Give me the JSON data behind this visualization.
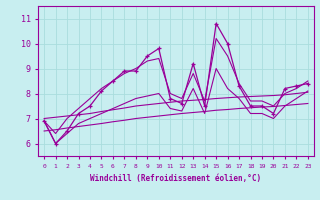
{
  "xlabel": "Windchill (Refroidissement éolien,°C)",
  "background_color": "#c8eef0",
  "grid_color": "#aadddd",
  "line_color": "#990099",
  "x_data": [
    0,
    1,
    2,
    3,
    4,
    5,
    6,
    7,
    8,
    9,
    10,
    11,
    12,
    13,
    14,
    15,
    16,
    17,
    18,
    19,
    20,
    21,
    22,
    23
  ],
  "y_main": [
    6.9,
    6.0,
    6.5,
    7.2,
    7.5,
    8.1,
    8.5,
    8.9,
    8.9,
    9.5,
    9.8,
    7.8,
    7.6,
    9.2,
    7.5,
    10.8,
    10.0,
    8.3,
    7.5,
    7.5,
    7.2,
    8.2,
    8.3,
    8.4
  ],
  "y_upper": [
    6.9,
    6.4,
    7.0,
    7.4,
    7.8,
    8.2,
    8.5,
    8.8,
    9.0,
    9.3,
    9.4,
    8.0,
    7.8,
    8.8,
    7.7,
    10.2,
    9.5,
    8.4,
    7.7,
    7.7,
    7.5,
    8.0,
    8.2,
    8.5
  ],
  "y_lower": [
    6.9,
    6.0,
    6.4,
    6.8,
    7.0,
    7.2,
    7.4,
    7.6,
    7.8,
    7.9,
    8.0,
    7.4,
    7.3,
    8.2,
    7.2,
    9.0,
    8.2,
    7.8,
    7.2,
    7.2,
    7.0,
    7.5,
    7.8,
    8.1
  ],
  "y_trend1": [
    7.0,
    7.05,
    7.1,
    7.15,
    7.2,
    7.28,
    7.35,
    7.42,
    7.5,
    7.55,
    7.6,
    7.65,
    7.7,
    7.73,
    7.76,
    7.8,
    7.83,
    7.86,
    7.88,
    7.9,
    7.92,
    7.95,
    8.0,
    8.05
  ],
  "y_trend2": [
    6.5,
    6.55,
    6.62,
    6.68,
    6.74,
    6.8,
    6.87,
    6.93,
    7.0,
    7.05,
    7.1,
    7.15,
    7.2,
    7.24,
    7.28,
    7.33,
    7.36,
    7.4,
    7.43,
    7.46,
    7.48,
    7.52,
    7.56,
    7.6
  ],
  "ylim": [
    5.5,
    11.5
  ],
  "yticks": [
    6,
    7,
    8,
    9,
    10,
    11
  ],
  "xlim": [
    -0.5,
    23.5
  ]
}
